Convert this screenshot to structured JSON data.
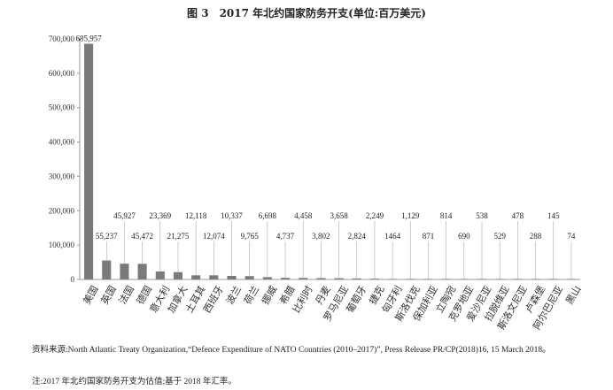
{
  "chart_data": {
    "type": "bar",
    "title": "图 3　2017 年北约国家防务开支(单位:百万美元)",
    "xlabel": "",
    "ylabel": "",
    "ylim": [
      0,
      700000
    ],
    "yticks": [
      "0",
      "100,000",
      "200,000",
      "300,000",
      "400,000",
      "500,000",
      "600,000",
      "700,000"
    ],
    "grid": false,
    "bar_color": "#7a7a7a",
    "categories": [
      "美国",
      "英国",
      "法国",
      "德国",
      "意大利",
      "加拿大",
      "土耳其",
      "西班牙",
      "波兰",
      "荷兰",
      "挪威",
      "希腊",
      "比利时",
      "丹麦",
      "罗马尼亚",
      "葡萄牙",
      "捷克",
      "匈牙利",
      "斯洛伐克",
      "保加利亚",
      "立陶宛",
      "克罗地亚",
      "爱沙尼亚",
      "拉脱维亚",
      "斯洛文尼亚",
      "卢森堡",
      "阿尔巴尼亚",
      "黑山"
    ],
    "values": [
      685957,
      55237,
      45927,
      45472,
      23369,
      21275,
      12118,
      12074,
      10337,
      9765,
      6698,
      4737,
      4458,
      3802,
      3658,
      2824,
      2249,
      1464,
      1129,
      871,
      814,
      690,
      538,
      529,
      478,
      288,
      145,
      74
    ],
    "value_labels": [
      "685,957",
      "55,237",
      "45,927",
      "45,472",
      "23,369",
      "21,275",
      "12,118",
      "12,074",
      "10,337",
      "9,765",
      "6,698",
      "4,737",
      "4,458",
      "3,802",
      "3,658",
      "2,824",
      "2,249",
      "1464",
      "1,129",
      "871",
      "814",
      "690",
      "538",
      "529",
      "478",
      "288",
      "145",
      "74"
    ]
  },
  "notes": {
    "source": "资料来源:North Atlantic Treaty Organization,“Defence Expenditure of NATO Countries (2010–2017)”, Press Release PR/CP(2018)16, 15 March 2018。",
    "footnote": "注:2017 年北约国家防务开支为估值;基于 2018 年汇率。"
  }
}
